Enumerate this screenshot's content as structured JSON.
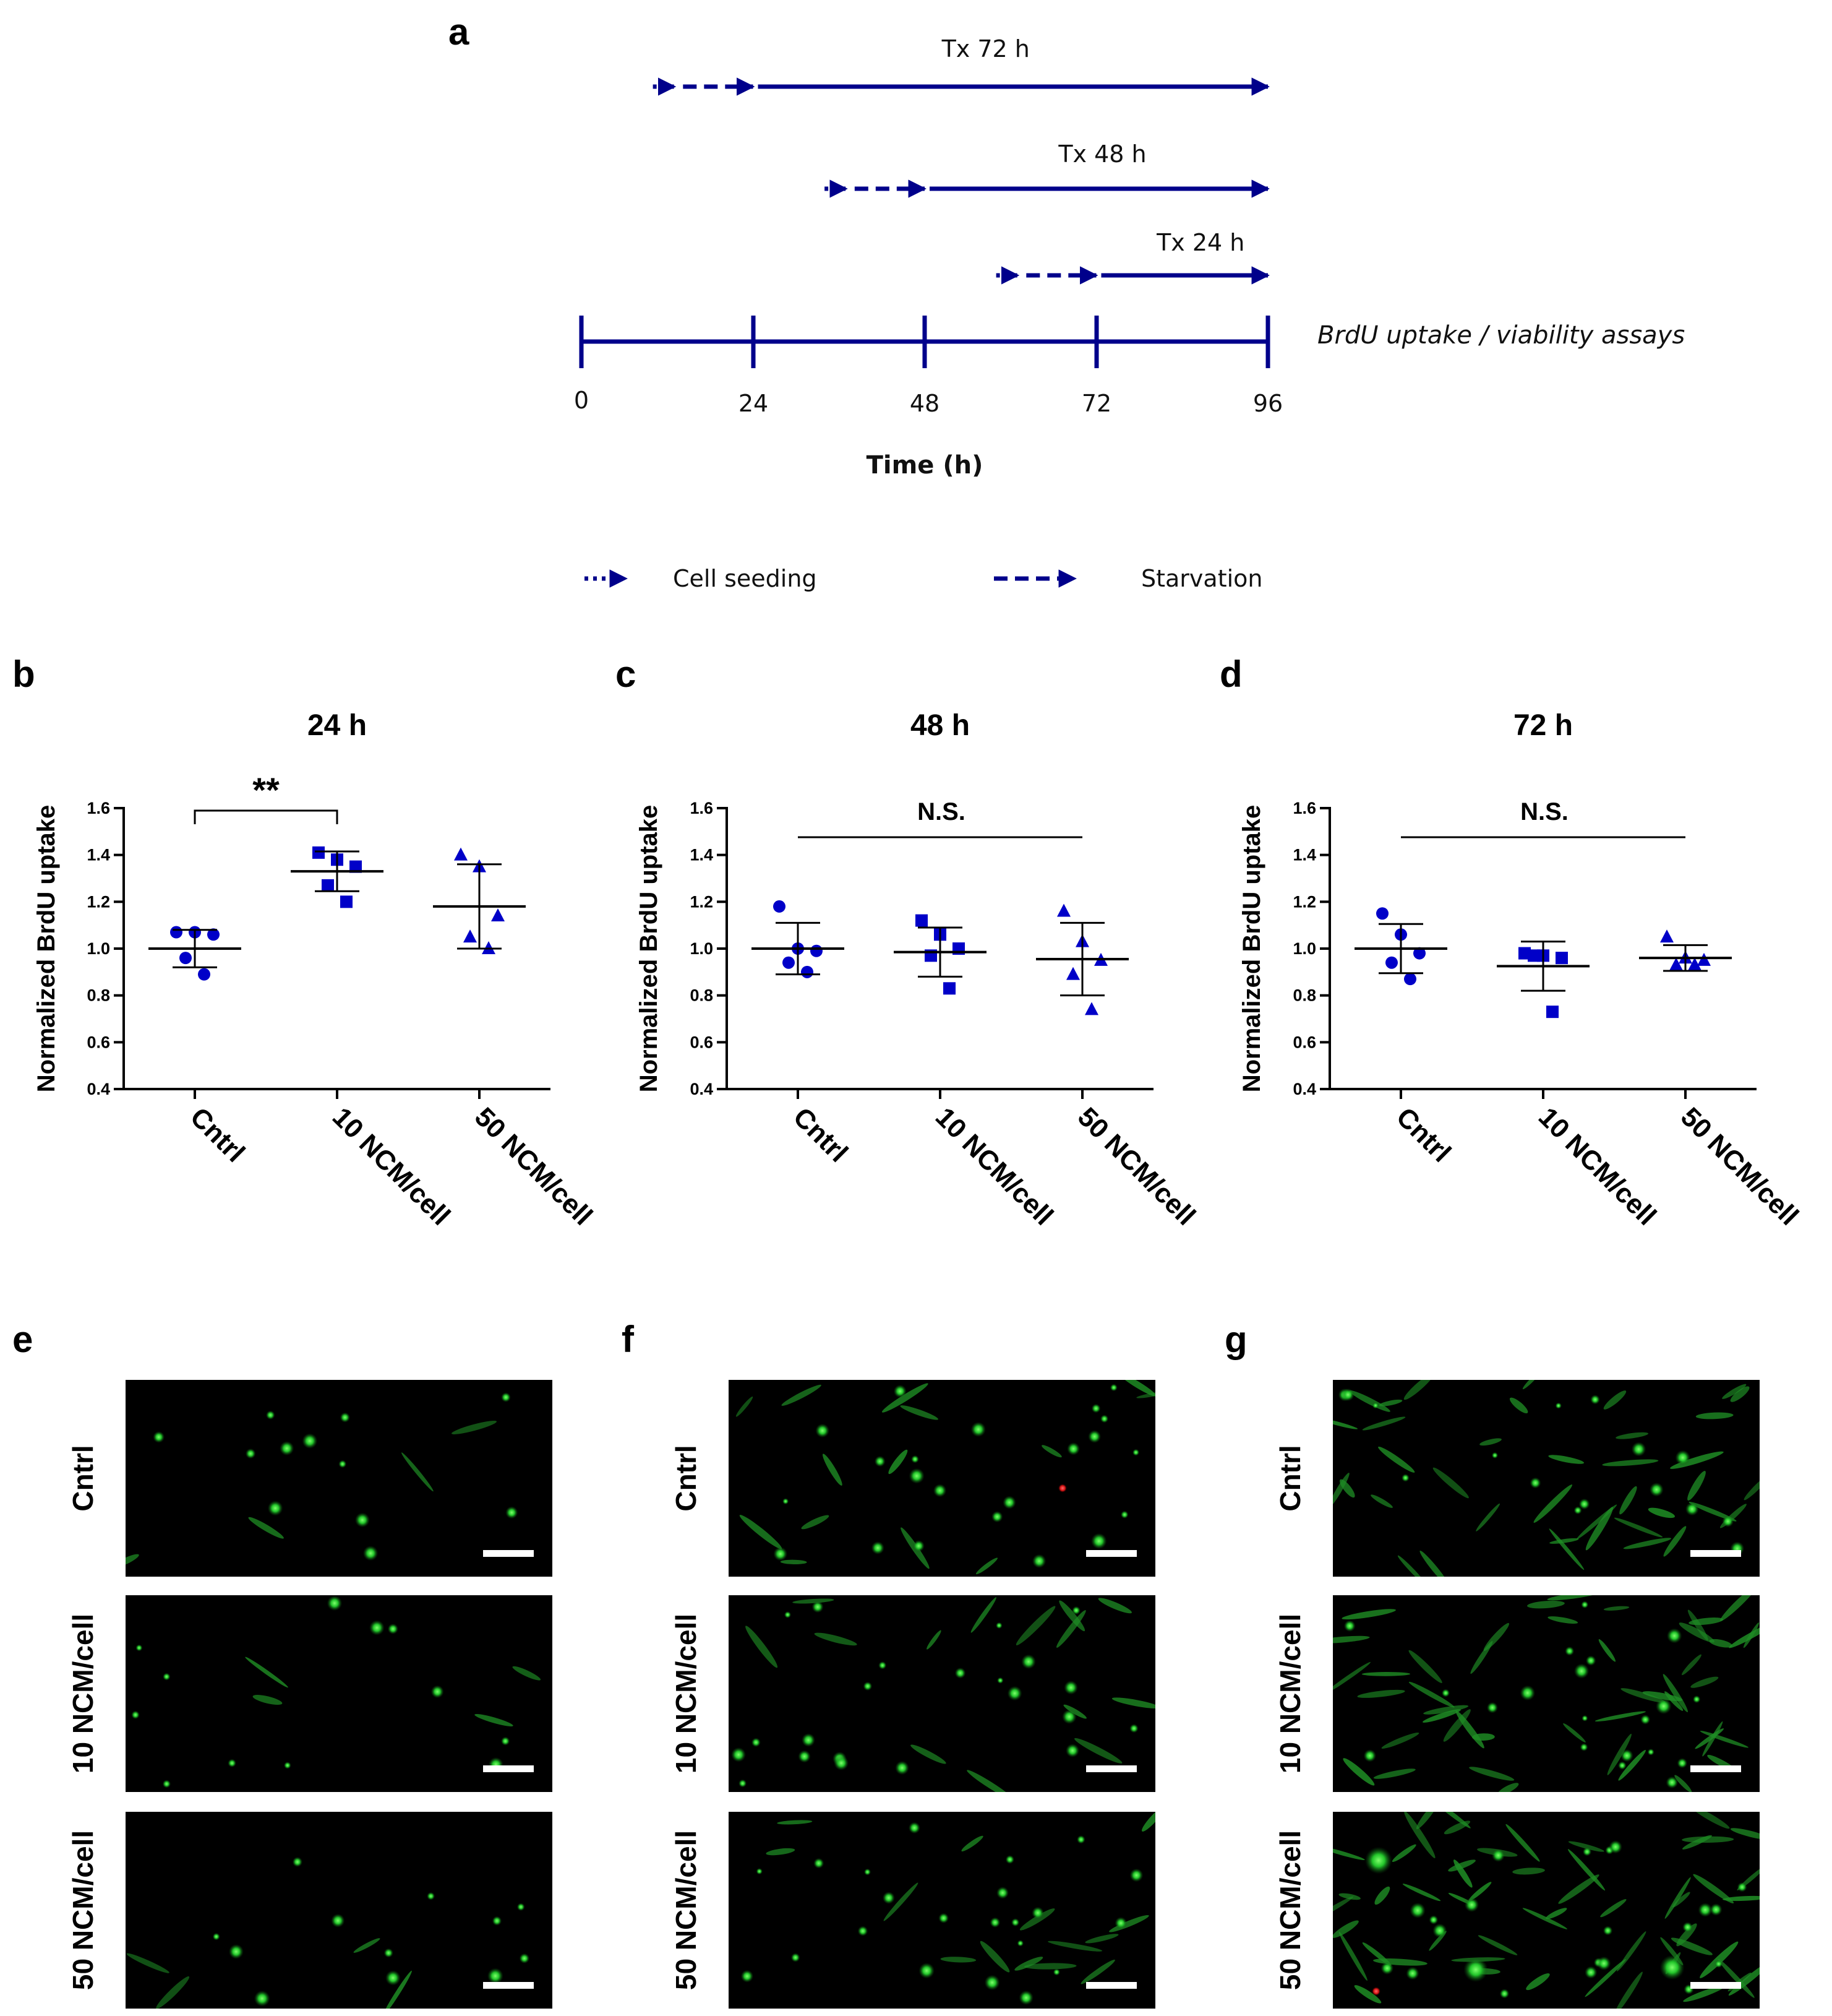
{
  "panel_letters": {
    "a": "a",
    "b": "b",
    "c": "c",
    "d": "d",
    "e": "e",
    "f": "f",
    "g": "g"
  },
  "timeline": {
    "colors": {
      "line": "#00008b"
    },
    "ticks": [
      "0",
      "24",
      "48",
      "72",
      "96"
    ],
    "axis_label": "Time (h)",
    "end_label": "BrdU uptake / viability assays",
    "treatments": [
      {
        "label": "Tx 72 h",
        "seed_start": 0,
        "seed_end": 0
      },
      {
        "label": "Tx 48 h",
        "seed_start": 24,
        "seed_end": 24
      },
      {
        "label": "Tx 24 h",
        "seed_start": 48,
        "seed_end": 48
      }
    ],
    "legend": {
      "seeding": "Cell seeding",
      "starvation": "Starvation"
    }
  },
  "chart_data": [
    {
      "type": "scatter",
      "title": "24 h",
      "ylabel": "Normalized BrdU uptake",
      "ylim": [
        0.4,
        1.6
      ],
      "yticks": [
        "0.4",
        "0.6",
        "0.8",
        "1.0",
        "1.2",
        "1.4",
        "1.6"
      ],
      "categories": [
        "Cntrl",
        "10 NCM/cell",
        "50 NCM/cell"
      ],
      "markers": [
        "circle",
        "square",
        "triangle"
      ],
      "points": [
        [
          1.07,
          1.07,
          1.06,
          0.96,
          0.89
        ],
        [
          1.41,
          1.38,
          1.35,
          1.27,
          1.2
        ],
        [
          1.4,
          1.35,
          1.14,
          1.05,
          1.0
        ]
      ],
      "means": [
        1.0,
        1.33,
        1.18
      ],
      "sd": [
        0.08,
        0.085,
        0.18
      ],
      "significance": "**",
      "sig_span": [
        0,
        1
      ]
    },
    {
      "type": "scatter",
      "title": "48 h",
      "ylabel": "Normalized BrdU uptake",
      "ylim": [
        0.4,
        1.6
      ],
      "yticks": [
        "0.4",
        "0.6",
        "0.8",
        "1.0",
        "1.2",
        "1.4",
        "1.6"
      ],
      "categories": [
        "Cntrl",
        "10 NCM/cell",
        "50 NCM/cell"
      ],
      "markers": [
        "circle",
        "square",
        "triangle"
      ],
      "points": [
        [
          1.18,
          1.0,
          0.99,
          0.94,
          0.9
        ],
        [
          1.12,
          1.06,
          1.0,
          0.97,
          0.83
        ],
        [
          1.16,
          1.03,
          0.95,
          0.89,
          0.74
        ]
      ],
      "means": [
        1.0,
        0.985,
        0.955
      ],
      "sd": [
        0.11,
        0.105,
        0.155
      ],
      "significance": "N.S.",
      "sig_span": [
        0,
        2
      ]
    },
    {
      "type": "scatter",
      "title": "72 h",
      "ylabel": "Normalized BrdU uptake",
      "ylim": [
        0.4,
        1.6
      ],
      "yticks": [
        "0.4",
        "0.6",
        "0.8",
        "1.0",
        "1.2",
        "1.4",
        "1.6"
      ],
      "categories": [
        "Cntrl",
        "10 NCM/cell",
        "50 NCM/cell"
      ],
      "markers": [
        "circle",
        "square",
        "triangle"
      ],
      "points": [
        [
          1.15,
          1.06,
          0.98,
          0.94,
          0.87
        ],
        [
          0.98,
          0.97,
          0.96,
          0.97,
          0.73
        ],
        [
          1.05,
          0.96,
          0.95,
          0.93,
          0.93
        ]
      ],
      "means": [
        1.0,
        0.925,
        0.96
      ],
      "sd": [
        0.105,
        0.105,
        0.055
      ],
      "significance": "N.S.",
      "sig_span": [
        0,
        2
      ]
    }
  ],
  "micrographs": {
    "row_labels": [
      "Cntrl",
      "10 NCM/cell",
      "50 NCM/cell"
    ],
    "colors": {
      "background": "#000000",
      "live_cell": "#22c52a",
      "dead_cell": "#e01010",
      "scale_bar": "#ffffff"
    }
  }
}
